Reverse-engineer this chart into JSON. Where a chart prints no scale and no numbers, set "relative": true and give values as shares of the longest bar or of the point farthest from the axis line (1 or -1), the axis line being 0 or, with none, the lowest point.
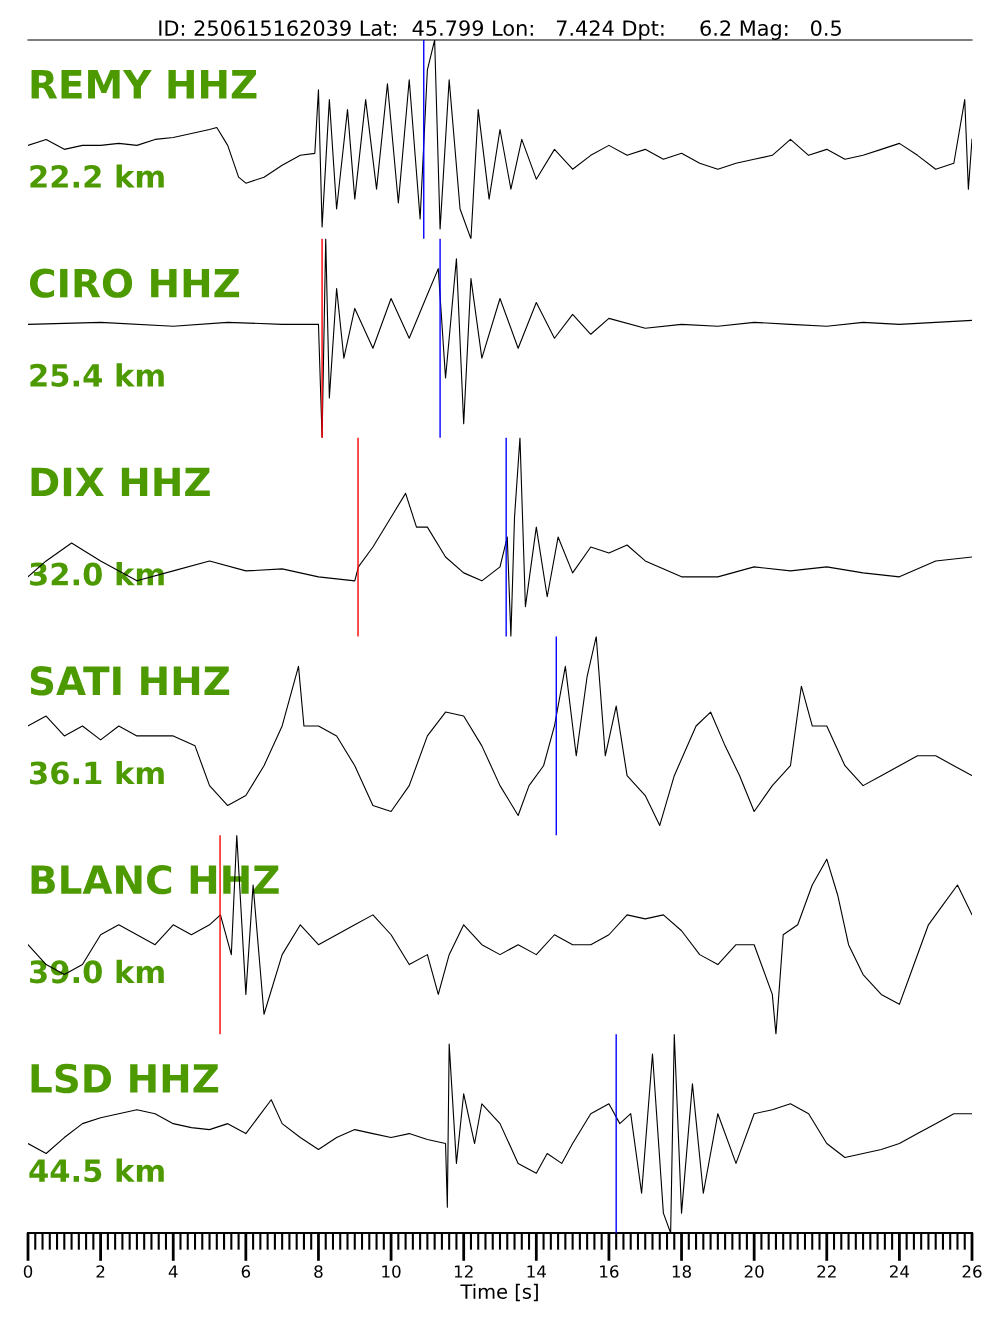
{
  "chart_data": [
    {
      "type": "line",
      "relative": true,
      "title": "ID: 250615162039 Lat:  45.799 Lon:   7.424 Dpt:     6.2 Mag:   0.5",
      "annotations": [
        "REMY HHZ",
        "22.2 km"
      ],
      "xlim": [
        0,
        26
      ],
      "tick_labels": false,
      "ref_lines": [
        {
          "axis": "x",
          "value": 10.9,
          "color": "#0000ff"
        }
      ],
      "series": [
        {
          "color": "#000000",
          "x": [
            0,
            0.5,
            1,
            1.5,
            2,
            2.5,
            3,
            3.5,
            4,
            4.5,
            5,
            5.2,
            5.5,
            5.8,
            6,
            6.5,
            7,
            7.5,
            7.9,
            8.0,
            8.1,
            8.3,
            8.5,
            8.8,
            9.0,
            9.3,
            9.6,
            9.9,
            10.2,
            10.5,
            10.8,
            11.0,
            11.2,
            11.35,
            11.6,
            11.9,
            12.2,
            12.4,
            12.7,
            13.0,
            13.3,
            13.6,
            14,
            14.5,
            15,
            15.5,
            16,
            16.5,
            17,
            17.5,
            18,
            18.5,
            19,
            19.5,
            20,
            20.5,
            21,
            21.5,
            22,
            22.5,
            23,
            23.5,
            24,
            24.5,
            25,
            25.5,
            25.8,
            25.9,
            26
          ],
          "values": [
            0.47,
            0.5,
            0.45,
            0.47,
            0.47,
            0.48,
            0.47,
            0.5,
            0.51,
            0.53,
            0.55,
            0.56,
            0.47,
            0.31,
            0.28,
            0.31,
            0.37,
            0.42,
            0.43,
            0.75,
            0.06,
            0.7,
            0.15,
            0.65,
            0.2,
            0.7,
            0.25,
            0.78,
            0.18,
            0.8,
            0.1,
            0.85,
            1.0,
            0.05,
            0.8,
            0.15,
            0.0,
            0.65,
            0.2,
            0.55,
            0.25,
            0.5,
            0.3,
            0.45,
            0.35,
            0.42,
            0.47,
            0.42,
            0.45,
            0.4,
            0.43,
            0.38,
            0.35,
            0.38,
            0.4,
            0.42,
            0.5,
            0.42,
            0.45,
            0.4,
            0.42,
            0.45,
            0.48,
            0.42,
            0.35,
            0.38,
            0.7,
            0.25,
            0.5
          ]
        }
      ]
    },
    {
      "type": "line",
      "relative": true,
      "annotations": [
        "CIRO HHZ",
        "25.4 km"
      ],
      "xlim": [
        0,
        26
      ],
      "tick_labels": false,
      "ref_lines": [
        {
          "axis": "x",
          "value": 8.1,
          "color": "#ff0000"
        },
        {
          "axis": "x",
          "value": 11.35,
          "color": "#0000ff"
        }
      ],
      "series": [
        {
          "color": "#000000",
          "x": [
            0,
            2,
            4,
            5.5,
            7,
            8.0,
            8.1,
            8.2,
            8.3,
            8.5,
            8.7,
            9,
            9.5,
            10,
            10.5,
            11,
            11.3,
            11.5,
            11.8,
            12.0,
            12.2,
            12.5,
            13,
            13.5,
            14,
            14.5,
            15,
            15.5,
            16,
            17,
            18,
            19,
            20,
            21,
            22,
            23,
            24,
            25,
            26
          ],
          "values": [
            0.57,
            0.58,
            0.56,
            0.58,
            0.57,
            0.57,
            0.0,
            1.0,
            0.2,
            0.75,
            0.4,
            0.65,
            0.45,
            0.7,
            0.5,
            0.72,
            0.85,
            0.3,
            0.9,
            0.07,
            0.8,
            0.4,
            0.7,
            0.45,
            0.68,
            0.5,
            0.62,
            0.52,
            0.6,
            0.55,
            0.57,
            0.56,
            0.58,
            0.57,
            0.56,
            0.58,
            0.57,
            0.58,
            0.59
          ]
        }
      ]
    },
    {
      "type": "line",
      "relative": true,
      "annotations": [
        "DIX HHZ",
        "32.0 km"
      ],
      "xlim": [
        0,
        26
      ],
      "tick_labels": false,
      "ref_lines": [
        {
          "axis": "x",
          "value": 9.09,
          "color": "#ff0000"
        },
        {
          "axis": "x",
          "value": 13.17,
          "color": "#0000ff"
        }
      ],
      "series": [
        {
          "color": "#000000",
          "x": [
            0,
            0.5,
            1.2,
            2,
            3,
            4,
            5,
            6,
            7,
            8,
            9,
            9.1,
            9.5,
            10,
            10.4,
            10.7,
            11,
            11.5,
            12,
            12.5,
            13.0,
            13.2,
            13.3,
            13.4,
            13.55,
            13.7,
            14,
            14.3,
            14.6,
            15,
            15.5,
            16,
            16.5,
            17,
            18,
            19,
            20,
            21,
            22,
            23,
            24,
            25,
            26
          ],
          "values": [
            0.3,
            0.38,
            0.47,
            0.38,
            0.28,
            0.33,
            0.38,
            0.33,
            0.34,
            0.3,
            0.28,
            0.35,
            0.45,
            0.6,
            0.72,
            0.55,
            0.55,
            0.4,
            0.32,
            0.28,
            0.35,
            0.5,
            0.0,
            0.6,
            1.0,
            0.15,
            0.55,
            0.2,
            0.5,
            0.32,
            0.45,
            0.42,
            0.46,
            0.38,
            0.3,
            0.3,
            0.35,
            0.33,
            0.35,
            0.32,
            0.3,
            0.38,
            0.4
          ]
        }
      ]
    },
    {
      "type": "line",
      "relative": true,
      "annotations": [
        "SATI HHZ",
        "36.1 km"
      ],
      "xlim": [
        0,
        26
      ],
      "tick_labels": false,
      "ref_lines": [
        {
          "axis": "x",
          "value": 14.55,
          "color": "#0000ff"
        }
      ],
      "series": [
        {
          "color": "#000000",
          "x": [
            0,
            0.5,
            1,
            1.5,
            2,
            2.5,
            3,
            4,
            4.6,
            5,
            5.5,
            6,
            6.5,
            7,
            7.45,
            7.6,
            8,
            8.5,
            9,
            9.5,
            10,
            10.5,
            11,
            11.5,
            12,
            12.5,
            13,
            13.5,
            13.8,
            14.2,
            14.5,
            14.8,
            15.1,
            15.4,
            15.65,
            15.9,
            16.2,
            16.5,
            17,
            17.4,
            17.8,
            18.4,
            18.8,
            19.2,
            19.6,
            20,
            20.5,
            21,
            21.3,
            21.6,
            22,
            22.5,
            23,
            23.5,
            24,
            24.5,
            25,
            25.5,
            26
          ],
          "values": [
            0.55,
            0.6,
            0.5,
            0.55,
            0.48,
            0.55,
            0.5,
            0.5,
            0.45,
            0.25,
            0.15,
            0.2,
            0.35,
            0.55,
            0.85,
            0.55,
            0.55,
            0.5,
            0.35,
            0.15,
            0.12,
            0.25,
            0.5,
            0.62,
            0.6,
            0.45,
            0.25,
            0.1,
            0.25,
            0.35,
            0.55,
            0.85,
            0.4,
            0.8,
            1.0,
            0.4,
            0.65,
            0.3,
            0.2,
            0.05,
            0.3,
            0.55,
            0.62,
            0.45,
            0.3,
            0.12,
            0.25,
            0.35,
            0.75,
            0.55,
            0.55,
            0.35,
            0.25,
            0.3,
            0.35,
            0.4,
            0.4,
            0.35,
            0.3
          ]
        }
      ]
    },
    {
      "type": "line",
      "relative": true,
      "annotations": [
        "BLANC HHZ",
        "39.0 km"
      ],
      "xlim": [
        0,
        26
      ],
      "tick_labels": false,
      "ref_lines": [
        {
          "axis": "x",
          "value": 5.29,
          "color": "#ff0000"
        }
      ],
      "series": [
        {
          "color": "#000000",
          "x": [
            0,
            0.5,
            1,
            1.5,
            2,
            2.5,
            3,
            3.5,
            4,
            4.5,
            5,
            5.3,
            5.6,
            5.75,
            6,
            6.2,
            6.5,
            7,
            7.5,
            8,
            8.5,
            9,
            9.5,
            10,
            10.5,
            11,
            11.3,
            11.6,
            12,
            12.5,
            13,
            13.5,
            14,
            14.5,
            15,
            15.5,
            16,
            16.5,
            17,
            17.5,
            18,
            18.5,
            19,
            19.5,
            20,
            20.5,
            20.6,
            20.8,
            21.2,
            21.6,
            22,
            22.3,
            22.6,
            23,
            23.5,
            24,
            24.3,
            24.8,
            25.2,
            25.6,
            26
          ],
          "values": [
            0.45,
            0.35,
            0.3,
            0.35,
            0.5,
            0.55,
            0.5,
            0.45,
            0.55,
            0.5,
            0.55,
            0.6,
            0.4,
            1.0,
            0.2,
            0.75,
            0.1,
            0.4,
            0.55,
            0.45,
            0.5,
            0.55,
            0.6,
            0.5,
            0.35,
            0.4,
            0.2,
            0.4,
            0.55,
            0.45,
            0.4,
            0.45,
            0.4,
            0.5,
            0.45,
            0.45,
            0.5,
            0.6,
            0.58,
            0.6,
            0.52,
            0.4,
            0.35,
            0.45,
            0.45,
            0.2,
            0.0,
            0.5,
            0.55,
            0.75,
            0.88,
            0.7,
            0.45,
            0.3,
            0.2,
            0.15,
            0.3,
            0.55,
            0.65,
            0.75,
            0.6
          ]
        }
      ]
    },
    {
      "type": "line",
      "relative": true,
      "annotations": [
        "LSD HHZ",
        "44.5 km"
      ],
      "xlim": [
        0,
        26
      ],
      "xlabel": "Time [s]",
      "tick_labels": "x",
      "ref_lines": [
        {
          "axis": "x",
          "value": 16.2,
          "color": "#0000ff"
        }
      ],
      "xticks": [
        0,
        2,
        4,
        6,
        8,
        10,
        12,
        14,
        16,
        18,
        20,
        22,
        24,
        26
      ],
      "series": [
        {
          "color": "#000000",
          "x": [
            0,
            0.5,
            1,
            1.5,
            2,
            2.5,
            3,
            3.5,
            4,
            4.5,
            5,
            5.5,
            6,
            6.7,
            7,
            7.5,
            8,
            8.5,
            9,
            9.5,
            10,
            10.5,
            11,
            11.5,
            11.55,
            11.6,
            11.8,
            12,
            12.3,
            12.5,
            13,
            13.5,
            14,
            14.3,
            14.7,
            15,
            15.5,
            16,
            16.3,
            16.6,
            16.9,
            17.2,
            17.5,
            17.7,
            17.8,
            18,
            18.3,
            18.6,
            19,
            19.5,
            20,
            20.5,
            21,
            21.5,
            22,
            22.5,
            23,
            23.5,
            24,
            24.5,
            25,
            25.5,
            26
          ],
          "values": [
            0.45,
            0.4,
            0.48,
            0.55,
            0.58,
            0.6,
            0.62,
            0.6,
            0.55,
            0.53,
            0.52,
            0.55,
            0.5,
            0.67,
            0.55,
            0.48,
            0.42,
            0.48,
            0.52,
            0.5,
            0.48,
            0.5,
            0.47,
            0.45,
            0.13,
            0.95,
            0.35,
            0.7,
            0.45,
            0.65,
            0.55,
            0.35,
            0.3,
            0.4,
            0.35,
            0.45,
            0.6,
            0.65,
            0.55,
            0.6,
            0.2,
            0.9,
            0.1,
            0.0,
            1.0,
            0.1,
            0.75,
            0.2,
            0.6,
            0.35,
            0.6,
            0.62,
            0.65,
            0.6,
            0.45,
            0.38,
            0.4,
            0.42,
            0.45,
            0.5,
            0.55,
            0.6,
            0.6
          ]
        }
      ]
    }
  ]
}
